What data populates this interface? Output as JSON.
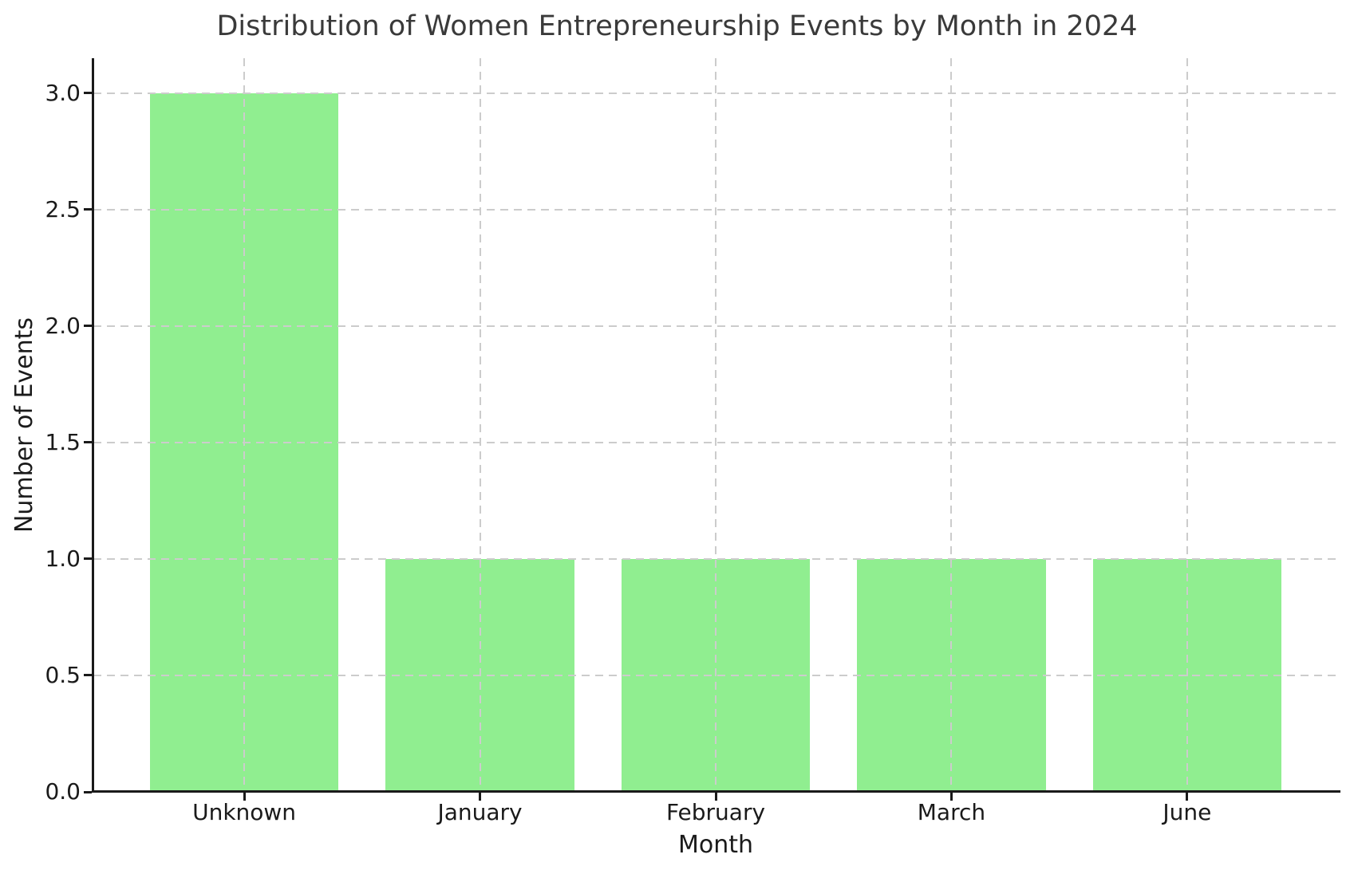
{
  "chart_data": {
    "type": "bar",
    "title": "Distribution of Women Entrepreneurship Events by Month in 2024",
    "xlabel": "Month",
    "ylabel": "Number of Events",
    "categories": [
      "Unknown",
      "January",
      "February",
      "March",
      "June"
    ],
    "values": [
      3,
      1,
      1,
      1,
      1
    ],
    "yticks": [
      0,
      0.5,
      1,
      1.5,
      2,
      2.5,
      3
    ],
    "ytick_labels": [
      "0.0",
      "0.5",
      "1.0",
      "1.5",
      "2.0",
      "2.5",
      "3.0"
    ],
    "ylim": [
      0,
      3.15
    ],
    "grid": {
      "visible": true,
      "style": "dashed",
      "axes": "both",
      "above_bars": true
    },
    "colors": {
      "bar": "#90EE90",
      "grid": "#cccccc",
      "spine": "#1a1a1a",
      "tick_text": "#1a1a1a",
      "title_text": "#3a3a3a",
      "background": "#ffffff"
    }
  }
}
